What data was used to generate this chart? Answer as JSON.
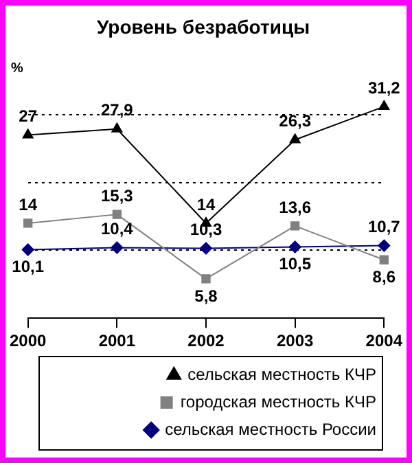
{
  "chart_data": {
    "type": "line",
    "title": "Уровень безработицы",
    "ylabel": "%",
    "categories": [
      "2000",
      "2001",
      "2002",
      "2003",
      "2004"
    ],
    "series": [
      {
        "name": "сельская местность КЧР",
        "color": "#000000",
        "marker": "triangle",
        "values": [
          27,
          27.9,
          14,
          26.3,
          31.2
        ],
        "value_labels": [
          "27",
          "27,9",
          "14",
          "26,3",
          "31,2"
        ]
      },
      {
        "name": "городская местность КЧР",
        "color": "#808080",
        "marker": "square",
        "values": [
          14,
          15.3,
          5.8,
          13.6,
          8.6
        ],
        "value_labels": [
          "14",
          "15,3",
          "5,8",
          "13,6",
          "8,6"
        ]
      },
      {
        "name": "сельская местность России",
        "color": "#000080",
        "marker": "diamond",
        "values": [
          10.1,
          10.4,
          10.3,
          10.5,
          10.7
        ],
        "value_labels": [
          "10,1",
          "10,4",
          "10,3",
          "10,5",
          "10,7"
        ]
      }
    ],
    "yticks": [
      {
        "value": 10,
        "label": null
      },
      {
        "value": 20,
        "label": null
      },
      {
        "value": 30,
        "label": null
      }
    ],
    "tick_labels": "x",
    "grid": "y",
    "legend": "bottom"
  }
}
